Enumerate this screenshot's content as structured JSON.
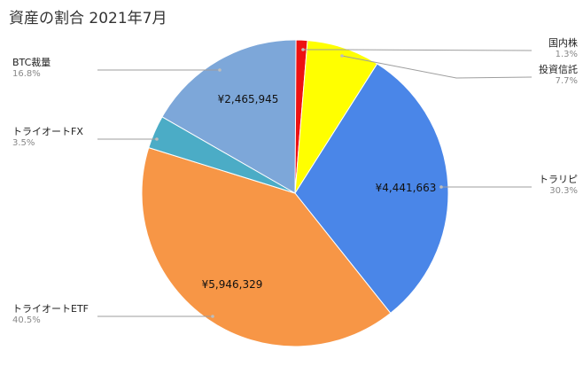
{
  "chart_data": {
    "type": "pie",
    "title": "資産の割合 2021年7月",
    "slices": [
      {
        "label": "国内株",
        "percent": "1.3%",
        "fraction": 0.013,
        "value_label": "",
        "color": "#ee1111"
      },
      {
        "label": "投資信託",
        "percent": "7.7%",
        "fraction": 0.077,
        "value_label": "",
        "color": "#ffff00"
      },
      {
        "label": "トラリピ",
        "percent": "30.3%",
        "fraction": 0.303,
        "value_label": "¥4,441,663",
        "color": "#4a86e8"
      },
      {
        "label": "トライオートETF",
        "percent": "40.5%",
        "fraction": 0.405,
        "value_label": "¥5,946,329",
        "color": "#f79646"
      },
      {
        "label": "トライオートFX",
        "percent": "3.5%",
        "fraction": 0.035,
        "value_label": "",
        "color": "#4bacc6"
      },
      {
        "label": "BTC裁量",
        "percent": "16.8%",
        "fraction": 0.168,
        "value_label": "¥2,465,945",
        "color": "#7da7d9"
      }
    ]
  }
}
